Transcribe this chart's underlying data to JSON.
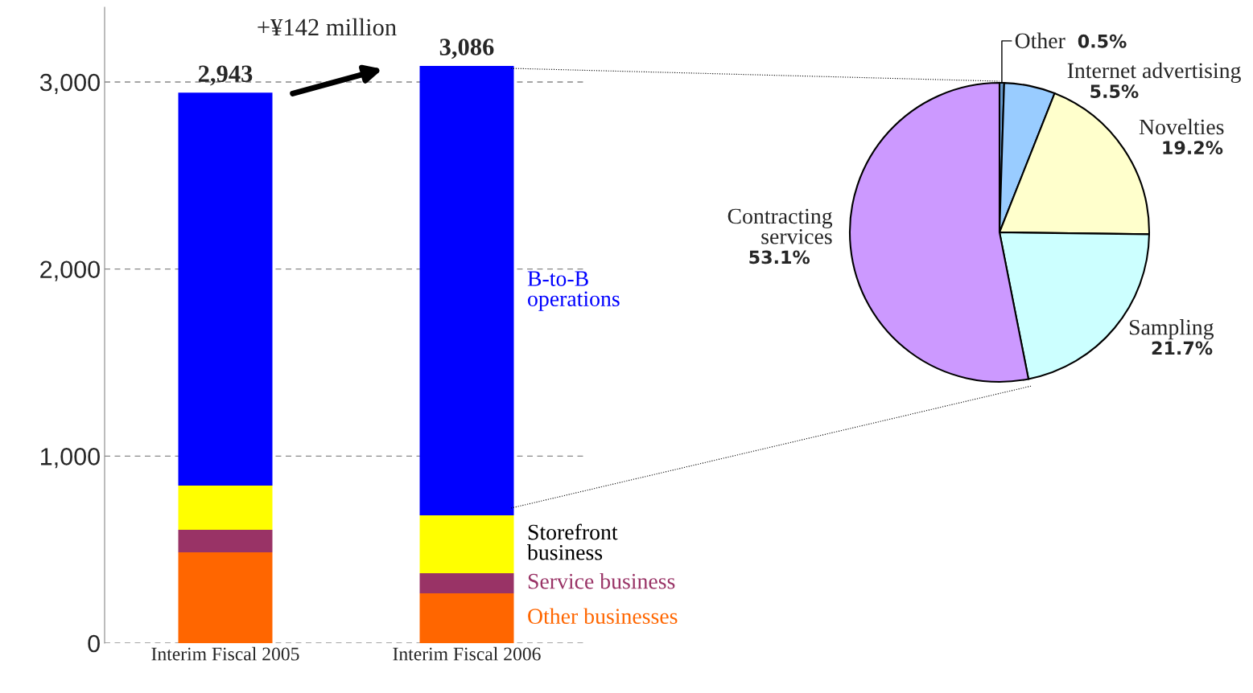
{
  "chart_data": [
    {
      "type": "bar",
      "stacked": true,
      "categories": [
        "Interim Fiscal 2005",
        "Interim Fiscal 2006"
      ],
      "series": [
        {
          "name": "Other businesses",
          "color": "#ff6600",
          "values": [
            486,
            266
          ]
        },
        {
          "name": "Service business",
          "color": "#993366",
          "values": [
            120,
            108
          ]
        },
        {
          "name": "Storefront\nbusiness",
          "color": "#ffff00",
          "values": [
            236,
            309
          ]
        },
        {
          "name": "B-to-B\noperations",
          "color": "#0000ff",
          "values": [
            2101,
            2403
          ]
        }
      ],
      "totals": [
        "2,943",
        "3,086"
      ],
      "ylim": [
        0,
        3400
      ],
      "yticks": [
        0,
        {
          "value": 1000,
          "label": "1,000"
        },
        {
          "value": 2000,
          "label": "2,000"
        },
        {
          "value": 3000,
          "label": "3,000"
        }
      ],
      "grid": "y",
      "annotations": [
        "+¥142 million"
      ]
    },
    {
      "type": "pie",
      "categories": [
        "Other",
        "Internet advertising",
        "Novelties",
        "Sampling",
        "Contracting\nservices"
      ],
      "values": [
        0.5,
        5.5,
        19.2,
        21.7,
        53.1
      ],
      "colors": [
        "#6699cc",
        "#99ccff",
        "#ffffcc",
        "#ccffff",
        "#cc99ff"
      ],
      "value_labels": [
        "0.5%",
        "5.5%",
        "19.2%",
        "21.7%",
        "53.1%"
      ]
    }
  ]
}
